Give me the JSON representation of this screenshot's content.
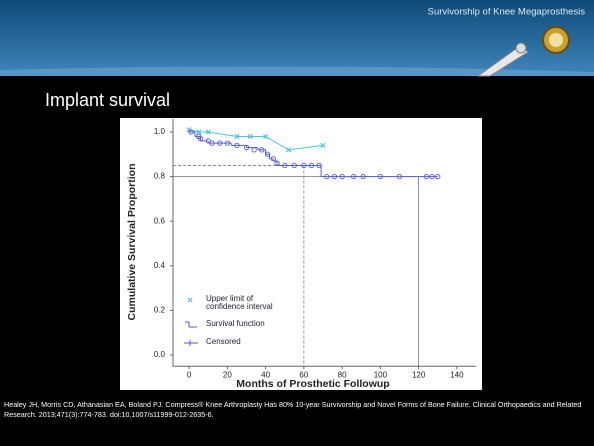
{
  "slide": {
    "header": "Survivorship of  Knee Megaprosthesis",
    "heading": "Implant survival",
    "citation": "Healey JH, Morris CD, Athanasian EA, Boland PJ. Compress® Knee Arthroplasty Has 80% 10-year Survivorship and Novel Forms of Bone Failure. Clinical Orthopaedics and Related Research. 2013;471(3):774-783. doi:10.1007/s11999-012-2635-6."
  },
  "chart_data": {
    "type": "step",
    "y_label": "Cumulative Survival Proportion",
    "x_label": "Months of Prosthetic Followup",
    "xlim": [
      -10,
      150
    ],
    "ylim": [
      -0.05,
      1.06
    ],
    "xticks": [
      0,
      20,
      40,
      60,
      80,
      100,
      120,
      140
    ],
    "yticks": [
      {
        "value": 0,
        "label": "0.0"
      },
      0.2,
      0.4,
      0.6,
      0.8,
      {
        "value": 1,
        "label": "1.0"
      }
    ],
    "series": [
      {
        "name": "Upper limit of confidence interval",
        "color": "#4fc3e8",
        "x": [
          0,
          5,
          10,
          25,
          32,
          40,
          52,
          70
        ],
        "values": [
          1.01,
          1.0,
          1.0,
          0.98,
          0.98,
          0.98,
          0.92,
          0.94
        ]
      },
      {
        "name": "Survival function",
        "color": "#5a5ad0",
        "x": [
          0,
          3,
          6,
          10,
          22,
          30,
          36,
          40,
          42,
          44,
          46,
          69,
          130
        ],
        "values": [
          1.0,
          0.98,
          0.96,
          0.95,
          0.94,
          0.93,
          0.92,
          0.9,
          0.88,
          0.87,
          0.85,
          0.8,
          0.8
        ]
      },
      {
        "name": "Censored",
        "color": "#5a5ad0",
        "x": [
          1,
          5,
          6,
          10,
          12,
          16,
          20,
          25,
          30,
          34,
          38,
          41,
          44,
          46,
          50,
          55,
          60,
          64,
          68,
          72,
          76,
          80,
          86,
          91,
          100,
          110,
          124,
          127,
          130
        ],
        "values": [
          1.0,
          0.98,
          0.97,
          0.96,
          0.95,
          0.95,
          0.95,
          0.94,
          0.93,
          0.92,
          0.92,
          0.9,
          0.88,
          0.86,
          0.85,
          0.85,
          0.85,
          0.85,
          0.85,
          0.8,
          0.8,
          0.8,
          0.8,
          0.8,
          0.8,
          0.8,
          0.8,
          0.8,
          0.8
        ]
      }
    ],
    "reference_lines": [
      {
        "x": 60,
        "y": 0.85
      },
      {
        "x": 120,
        "y": 0.8
      }
    ]
  }
}
